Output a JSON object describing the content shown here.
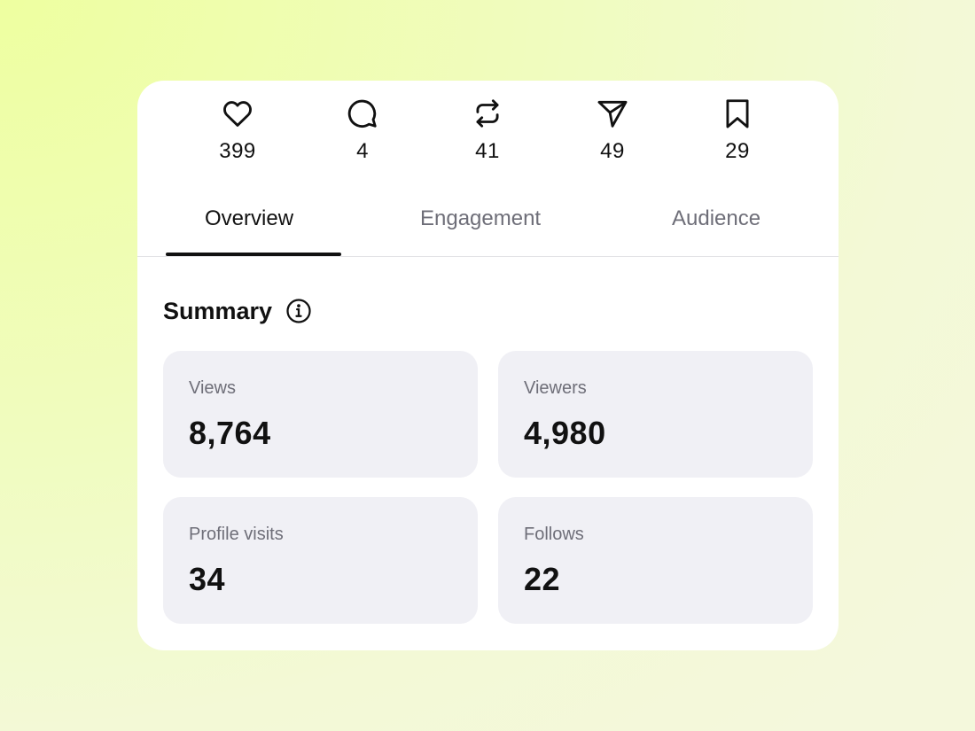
{
  "actions": [
    {
      "icon": "heart-icon",
      "count": "399"
    },
    {
      "icon": "comment-icon",
      "count": "4"
    },
    {
      "icon": "repost-icon",
      "count": "41"
    },
    {
      "icon": "share-icon",
      "count": "49"
    },
    {
      "icon": "bookmark-icon",
      "count": "29"
    }
  ],
  "tabs": [
    {
      "label": "Overview",
      "active": true
    },
    {
      "label": "Engagement",
      "active": false
    },
    {
      "label": "Audience",
      "active": false
    }
  ],
  "summary": {
    "title": "Summary",
    "icon": "info-icon",
    "stats": [
      {
        "label": "Views",
        "value": "8,764"
      },
      {
        "label": "Viewers",
        "value": "4,980"
      },
      {
        "label": "Profile visits",
        "value": "34"
      },
      {
        "label": "Follows",
        "value": "22"
      }
    ]
  },
  "colors": {
    "card_background": "#ffffff",
    "stat_background": "#f0f0f5",
    "primary_text": "#111111",
    "secondary_text": "#6e6e78",
    "page_background": "#f0fcbf"
  }
}
